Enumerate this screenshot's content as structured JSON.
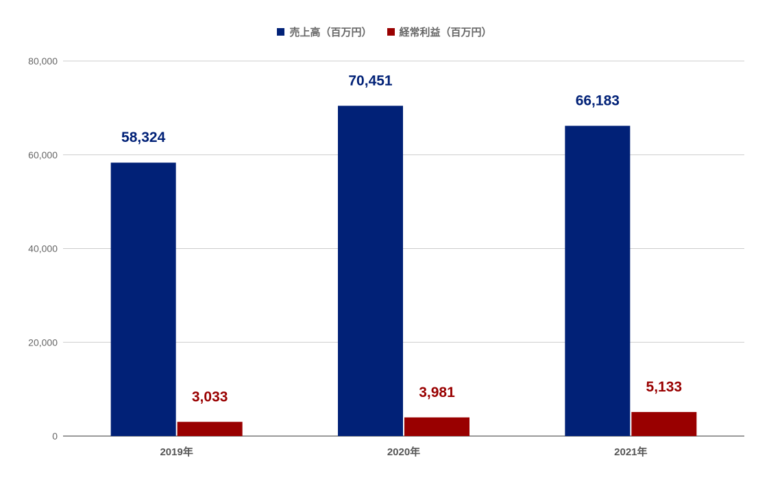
{
  "chart_data": {
    "type": "bar",
    "title": "",
    "xlabel": "",
    "ylabel": "",
    "categories": [
      "2019年",
      "2020年",
      "2021年"
    ],
    "series": [
      {
        "name": "売上高（百万円）",
        "values": [
          58324,
          70451,
          66183
        ],
        "color": "#012177",
        "labels": [
          "58,324",
          "70,451",
          "66,183"
        ]
      },
      {
        "name": "経常利益（百万円）",
        "values": [
          3033,
          3981,
          5133
        ],
        "color": "#990000",
        "labels": [
          "3,033",
          "3,981",
          "5,133"
        ]
      }
    ],
    "ylim": [
      0,
      80000
    ],
    "yticks": [
      0,
      20000,
      40000,
      60000,
      80000
    ],
    "ytick_labels": [
      "0",
      "20,000",
      "40,000",
      "60,000",
      "80,000"
    ],
    "grid": true,
    "legend_position": "top-center"
  }
}
